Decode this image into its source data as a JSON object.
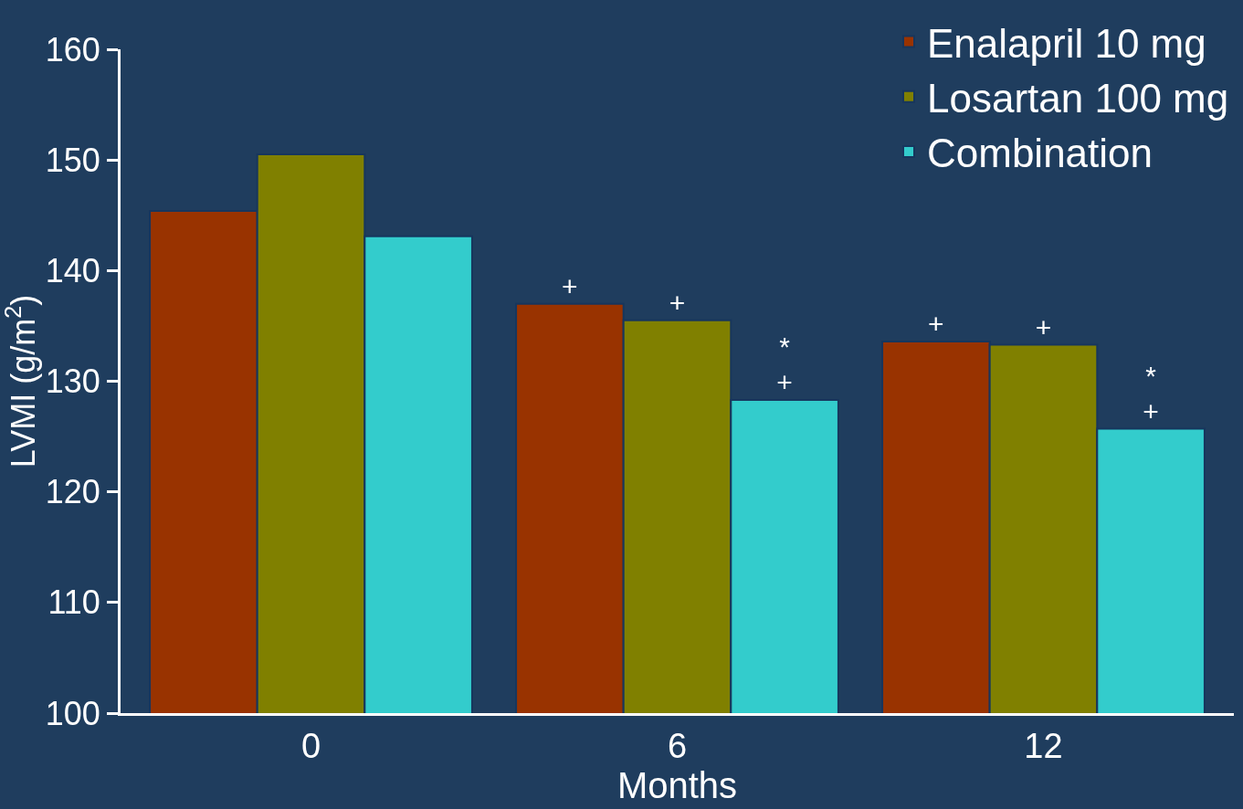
{
  "chart_data": {
    "type": "bar",
    "xlabel": "Months",
    "ylabel": "LVMI (g/m$^{2}$)",
    "categories": [
      "0",
      "6",
      "12"
    ],
    "series": [
      {
        "name": "Enalapril 10 mg",
        "color": "#993300",
        "values": [
          145.4,
          137.0,
          133.6
        ],
        "value_labels": [
          null,
          "+",
          "+"
        ]
      },
      {
        "name": "Losartan 100 mg",
        "color": "#808000",
        "values": [
          150.5,
          135.5,
          133.3
        ],
        "value_labels": [
          null,
          "+",
          "+"
        ]
      },
      {
        "name": "Combination",
        "color": "#33cccc",
        "values": [
          143.1,
          128.3,
          125.7
        ],
        "value_labels": [
          null,
          "*\n+",
          "*\n+"
        ]
      }
    ],
    "ylim": [
      100,
      160
    ],
    "yticks": [
      100,
      110,
      120,
      130,
      140,
      150,
      160
    ],
    "grid": false,
    "legend": "top right"
  }
}
